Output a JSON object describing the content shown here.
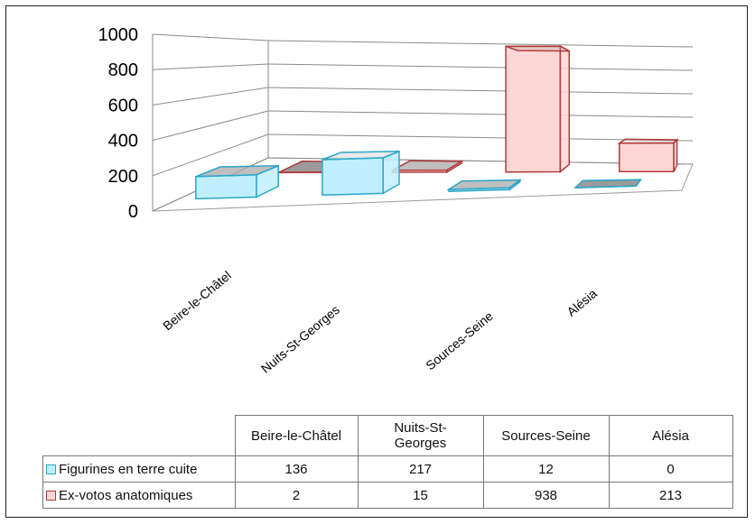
{
  "chart_data": {
    "type": "bar",
    "subtype": "3d-clustered-column",
    "categories": [
      "Beire-le-Châtel",
      "Nuits-St-Georges",
      "Sources-Seine",
      "Alésia"
    ],
    "header_labels": [
      "Beire-le-Châtel",
      "Nuits-St-\nGeorges",
      "Sources-Seine",
      "Alésia"
    ],
    "series": [
      {
        "name": "Figurines en terre cuite",
        "values": [
          136,
          217,
          12,
          0
        ],
        "color": "#bfefff",
        "edge": "#2aa7c7"
      },
      {
        "name": "Ex-votos anatomiques",
        "values": [
          2,
          15,
          938,
          213
        ],
        "color": "#ffd6d6",
        "edge": "#b03a3a"
      }
    ],
    "y_ticks": [
      0,
      200,
      400,
      600,
      800,
      1000
    ],
    "ylim": [
      0,
      1000
    ],
    "grid": true,
    "legend": "data-table"
  }
}
